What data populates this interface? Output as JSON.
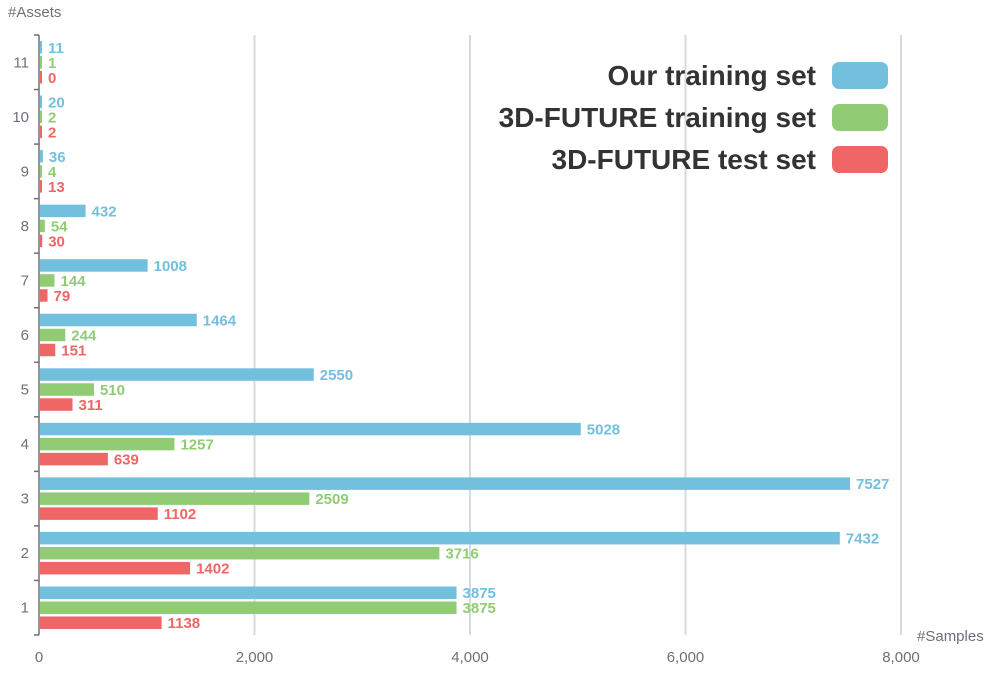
{
  "chart_data": {
    "type": "bar",
    "orientation": "horizontal",
    "xlabel": "#Samples",
    "ylabel": "#Assets",
    "xlim": [
      0,
      8000
    ],
    "xticks": [
      0,
      2000,
      4000,
      6000,
      8000
    ],
    "xtick_labels": [
      "0",
      "2,000",
      "4,000",
      "6,000",
      "8,000"
    ],
    "grid": "vertical",
    "legend_position": "top-right",
    "categories": [
      "1",
      "2",
      "3",
      "4",
      "5",
      "6",
      "7",
      "8",
      "9",
      "10",
      "11"
    ],
    "series": [
      {
        "name": "Our training set",
        "color": "#73c0de",
        "values": [
          3875,
          7432,
          7527,
          5028,
          2550,
          1464,
          1008,
          432,
          36,
          20,
          11
        ]
      },
      {
        "name": "3D-FUTURE training set",
        "color": "#91cc75",
        "values": [
          3875,
          3716,
          2509,
          1257,
          510,
          244,
          144,
          54,
          4,
          2,
          1
        ]
      },
      {
        "name": "3D-FUTURE test set",
        "color": "#ee6666",
        "values": [
          1138,
          1402,
          1102,
          639,
          311,
          151,
          79,
          30,
          13,
          2,
          0
        ]
      }
    ]
  }
}
